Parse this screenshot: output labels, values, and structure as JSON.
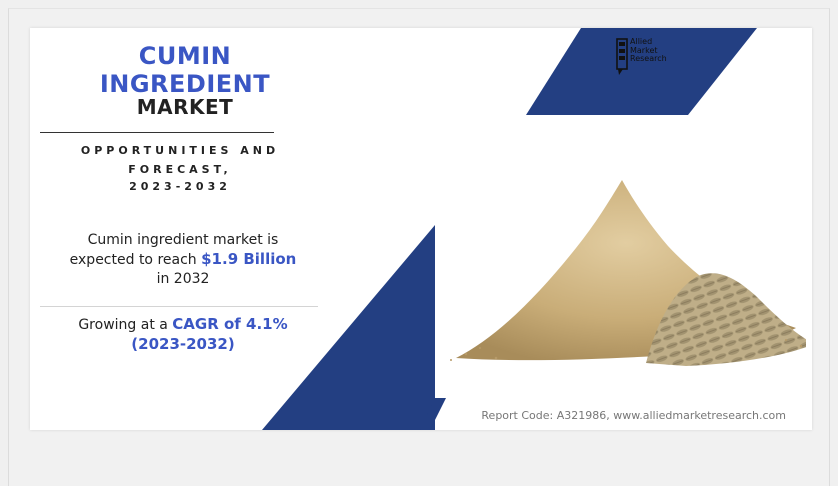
{
  "title": {
    "line1": "CUMIN",
    "line2": "INGREDIENT",
    "line3": "MARKET"
  },
  "subtitle": {
    "line1": "OPPORTUNITIES AND",
    "line2": "FORECAST,",
    "line3": "2023-2032"
  },
  "stat1": {
    "text_a": "Cumin ingredient market is",
    "text_b": "expected to reach ",
    "value": "$1.9 Billion",
    "text_c": "in 2032"
  },
  "stat2": {
    "text_a": "Growing at a ",
    "value": "CAGR of 4.1%",
    "period": "(2023-2032)"
  },
  "logo": {
    "line1": "Allied",
    "line2": "Market",
    "line3": "Research"
  },
  "footer": {
    "report": "Report Code: A321986, www.alliedmarketresearch.com"
  },
  "colors": {
    "accent": "#3a56c4",
    "navy": "#233f82"
  }
}
